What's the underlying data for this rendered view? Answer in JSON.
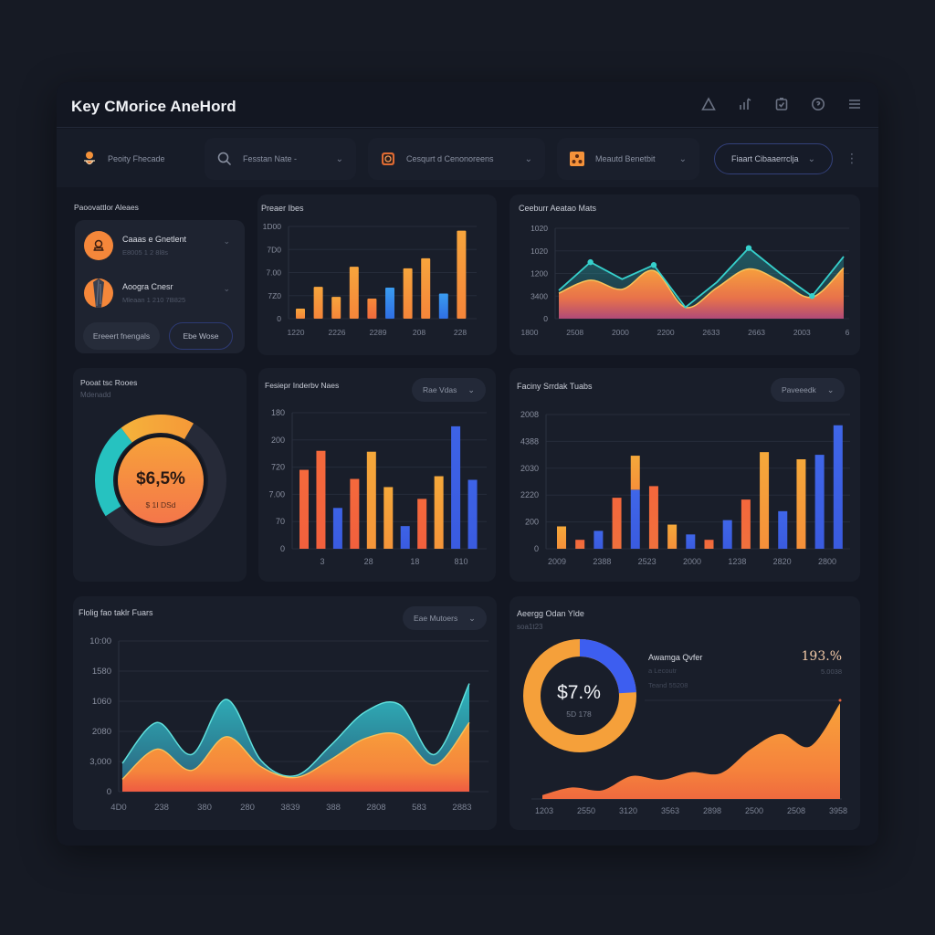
{
  "app": {
    "title": "Key CMorice AneHord",
    "header_icons": [
      "alert-triangle-icon",
      "chart-bars-icon",
      "clipboard-check-icon",
      "help-circle-icon",
      "menu-icon"
    ]
  },
  "filters": [
    {
      "icon": "user-icon",
      "label": "Peoity  Fhecade",
      "has_chevron": false
    },
    {
      "icon": "search-icon",
      "label": "Fesstan Nate -",
      "has_chevron": true
    },
    {
      "icon": "camera-icon",
      "label": "Cesqurt d Cenonoreens",
      "has_chevron": true
    },
    {
      "icon": "share-icon",
      "label": "Meautd Benetbit",
      "has_chevron": true
    },
    {
      "icon": "",
      "label": "Fiaart Cibaaerrclja",
      "has_chevron": true,
      "outlined": true
    }
  ],
  "panels": {
    "recommended": {
      "title": "Paoovattlor Aleaes",
      "items": [
        {
          "name": "Caaas e Gnetlent",
          "meta": "E8005  1  2 8l8s"
        },
        {
          "name": "Aoogra Cnesr",
          "meta": "Mleaan  1  210 7B825"
        }
      ],
      "button_primary": "Ereeert fnengals",
      "button_secondary": "Ebe  Wose"
    },
    "bar_top": {
      "title": "Preaer Ibes"
    },
    "line_top": {
      "title": "Ceeburr Aeatao Mats"
    },
    "donut_left": {
      "title": "Pooat tsc  Rooes",
      "subtitle": "Mdenadd",
      "value": "$6,5%",
      "sub_value": "$ 1I DSd"
    },
    "bar_mid": {
      "title": "Fesiepr Inderbv Naes",
      "dropdown": "Rae Vdas"
    },
    "bar_mid_right": {
      "title": "Faciny Srrdak Tuabs",
      "dropdown": "Paveeedk"
    },
    "area_bottom": {
      "title": "Flolig fao taklr Fuars",
      "dropdown": "Eae Mutoers"
    },
    "aov": {
      "title": "Aeergg Odan Ylde",
      "subtitle": "soa1t23",
      "donut_value": "$7.%",
      "donut_sub": "5D 178",
      "metric_label": "Awamga Qvfer",
      "metric_line1": "a Lecoutr",
      "metric_line2": "Teand 55208",
      "metric_value": "193.%",
      "metric_sub": "5.0038"
    }
  },
  "colors": {
    "orange": "#f5923a",
    "orange_red": "#f26a3d",
    "blue": "#3d63e6",
    "teal": "#2ec1c4",
    "bg": "#161a24",
    "card": "#191e2a"
  },
  "chart_data": [
    {
      "id": "bar_top",
      "type": "bar",
      "title": "Preaer Ibes",
      "yticks": [
        "1Ð00",
        "700",
        "7.00",
        "700",
        "0"
      ],
      "ytick_labels": [
        "1D00",
        "7D0",
        "7.00",
        "7Z0",
        "0"
      ],
      "xtick_labels": [
        "1220",
        "2226",
        "2289",
        "208",
        "228"
      ],
      "values": [
        12,
        38,
        26,
        62,
        24,
        37,
        60,
        72,
        30,
        105
      ],
      "colors": [
        "#f5923a",
        "#f5a03a",
        "#f5923a",
        "#f5a03a",
        "#f2743d",
        "#2f8fe8",
        "#f5a03a",
        "#f5a03a",
        "#2f7fe8",
        "#f5923a"
      ],
      "ylim": [
        0,
        110
      ]
    },
    {
      "id": "line_top",
      "type": "area",
      "title": "Ceeburr Aeatao Mats",
      "ytick_labels": [
        "1020",
        "1020",
        "1200",
        "3400",
        "0"
      ],
      "xtick_labels": [
        "1800",
        "2508",
        "2000",
        "2200",
        "2633",
        "2663",
        "2003",
        "6"
      ],
      "series": [
        {
          "name": "teal-line",
          "values": [
            50,
            100,
            70,
            95,
            20,
            65,
            125,
            80,
            40,
            110
          ],
          "color": "#2ec1c4"
        },
        {
          "name": "orange-area",
          "values": [
            45,
            68,
            52,
            85,
            20,
            55,
            88,
            66,
            38,
            90
          ],
          "color": "#f5923a"
        }
      ],
      "ylim": [
        0,
        160
      ]
    },
    {
      "id": "donut_left",
      "type": "pie",
      "title": "Pooat tsc  Rooes",
      "center_label": "$6,5%",
      "slices": [
        {
          "name": "orange",
          "value": 22,
          "color": "#f5a53a"
        },
        {
          "name": "dark",
          "value": 58,
          "color": "#262a38"
        },
        {
          "name": "teal",
          "value": 20,
          "color": "#26c2c0"
        }
      ]
    },
    {
      "id": "bar_mid",
      "type": "bar",
      "title": "Fesiepr Inderbv Naes",
      "ytick_labels": [
        "180",
        "200",
        "720",
        "7.00",
        "70",
        "0"
      ],
      "xtick_labels": [
        "3",
        "28",
        "18",
        "810"
      ],
      "values": [
        87,
        108,
        45,
        77,
        107,
        68,
        25,
        55,
        80,
        135,
        76
      ],
      "colors": [
        "#f2683d",
        "#f2683d",
        "#3d63e6",
        "#f2683d",
        "#f5a03a",
        "#f5a03a",
        "#2f76e8",
        "#f2683d",
        "#f5a03a",
        "#3d63e6",
        "#3d63e6"
      ],
      "ylim": [
        0,
        150
      ]
    },
    {
      "id": "bar_mid_right",
      "type": "bar",
      "title": "Faciny Srrdak Tuabs",
      "ytick_labels": [
        "2008",
        "4388",
        "2030",
        "2220",
        "200",
        "0"
      ],
      "xtick_labels": [
        "2009",
        "2388",
        "2523",
        "2000",
        "1238",
        "2820",
        "2800"
      ],
      "series": [
        {
          "name": "base",
          "values": [
            25,
            10,
            20,
            57,
            66,
            70,
            27,
            16,
            10,
            32,
            55,
            108,
            42,
            100,
            105,
            138
          ]
        },
        {
          "name": "stack",
          "values": [
            0,
            0,
            0,
            0,
            38,
            0,
            0,
            0,
            0,
            0,
            0,
            0,
            0,
            0,
            0,
            0
          ]
        }
      ],
      "colors": [
        "#f5a03a",
        "#f2683d",
        "#3d63e6",
        "#f2683d",
        "#3d63e6",
        "#f2683d",
        "#f5a03a",
        "#3d63e6",
        "#f2683d",
        "#3d63e6",
        "#f2683d",
        "#f5a03a",
        "#3d63e6",
        "#f5a03a",
        "#3d63e6",
        "#3d63e6"
      ],
      "stack_color": "#f5a03a",
      "ylim": [
        0,
        150
      ]
    },
    {
      "id": "area_bottom",
      "type": "area",
      "title": "Flolig fao taklr Fuars",
      "ytick_labels": [
        "10:00",
        "1580",
        "1060",
        "2080",
        "3,000",
        "0"
      ],
      "xtick_labels": [
        "4D0",
        "238",
        "380",
        "280",
        "3839",
        "388",
        "2808",
        "583",
        "2883"
      ],
      "series": [
        {
          "name": "teal",
          "values": [
            32,
            78,
            42,
            104,
            35,
            18,
            52,
            90,
            98,
            42,
            122
          ],
          "color": "#2cb8c0"
        },
        {
          "name": "orange",
          "values": [
            14,
            48,
            24,
            62,
            28,
            16,
            36,
            60,
            64,
            30,
            78
          ],
          "color": "#f5923a"
        }
      ],
      "ylim": [
        0,
        170
      ]
    },
    {
      "id": "aov_donut",
      "type": "pie",
      "title": "Aeergg Odan Ylde",
      "center_label": "$7.%",
      "slices": [
        {
          "name": "blue",
          "value": 24,
          "color": "#3d5ef0"
        },
        {
          "name": "orange",
          "value": 76,
          "color": "#f5a03a"
        }
      ]
    },
    {
      "id": "aov_area",
      "type": "area",
      "xtick_labels": [
        "1203",
        "2550",
        "3120",
        "3563",
        "2898",
        "2500",
        "2508",
        "3958"
      ],
      "values": [
        4,
        12,
        9,
        24,
        20,
        28,
        27,
        52,
        68,
        55,
        100
      ],
      "color": "#f5923a",
      "ylim": [
        0,
        105
      ]
    }
  ]
}
